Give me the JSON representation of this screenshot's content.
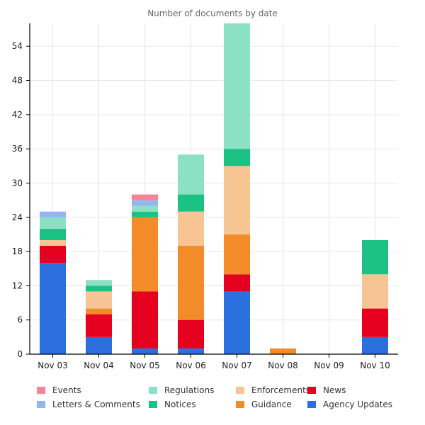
{
  "chart_data": {
    "type": "bar",
    "stacked": true,
    "title": "Number of documents by date",
    "xlabel": "",
    "ylabel": "",
    "ylim": [
      0,
      58
    ],
    "yticks": [
      0,
      6,
      12,
      18,
      24,
      30,
      36,
      42,
      48,
      54
    ],
    "grid": true,
    "legend_position": "bottom",
    "categories": [
      "Nov 03",
      "Nov 04",
      "Nov 05",
      "Nov 06",
      "Nov 07",
      "Nov 08",
      "Nov 09",
      "Nov 10"
    ],
    "series": [
      {
        "name": "Agency Updates",
        "color": "#2c6fdf",
        "values": [
          16,
          3,
          1,
          1,
          11,
          0,
          0,
          3
        ]
      },
      {
        "name": "News",
        "color": "#e6001f",
        "values": [
          3,
          4,
          10,
          5,
          3,
          0,
          0,
          5
        ]
      },
      {
        "name": "Guidance",
        "color": "#f38b28",
        "values": [
          0,
          1,
          13,
          13,
          7,
          1,
          0,
          0
        ]
      },
      {
        "name": "Enforcements",
        "color": "#f7c594",
        "values": [
          1,
          3,
          0,
          6,
          12,
          0,
          0,
          6
        ]
      },
      {
        "name": "Notices",
        "color": "#1bc283",
        "values": [
          2,
          1,
          1,
          3,
          3,
          0,
          0,
          6
        ]
      },
      {
        "name": "Regulations",
        "color": "#8ce0c3",
        "values": [
          2,
          1,
          1,
          7,
          22,
          0,
          0,
          0
        ]
      },
      {
        "name": "Letters & Comments",
        "color": "#96b4ee",
        "values": [
          1,
          0,
          1,
          0,
          0,
          0,
          0,
          0
        ]
      },
      {
        "name": "Events",
        "color": "#f38595",
        "values": [
          0,
          0,
          1,
          0,
          0,
          0,
          0,
          0
        ]
      }
    ],
    "legend": [
      {
        "name": "Events",
        "color": "#f38595"
      },
      {
        "name": "Regulations",
        "color": "#8ce0c3"
      },
      {
        "name": "Enforcements",
        "color": "#f7c594"
      },
      {
        "name": "News",
        "color": "#e6001f"
      },
      {
        "name": "Letters & Comments",
        "color": "#96b4ee"
      },
      {
        "name": "Notices",
        "color": "#1bc283"
      },
      {
        "name": "Guidance",
        "color": "#f38b28"
      },
      {
        "name": "Agency Updates",
        "color": "#2c6fdf"
      }
    ]
  }
}
